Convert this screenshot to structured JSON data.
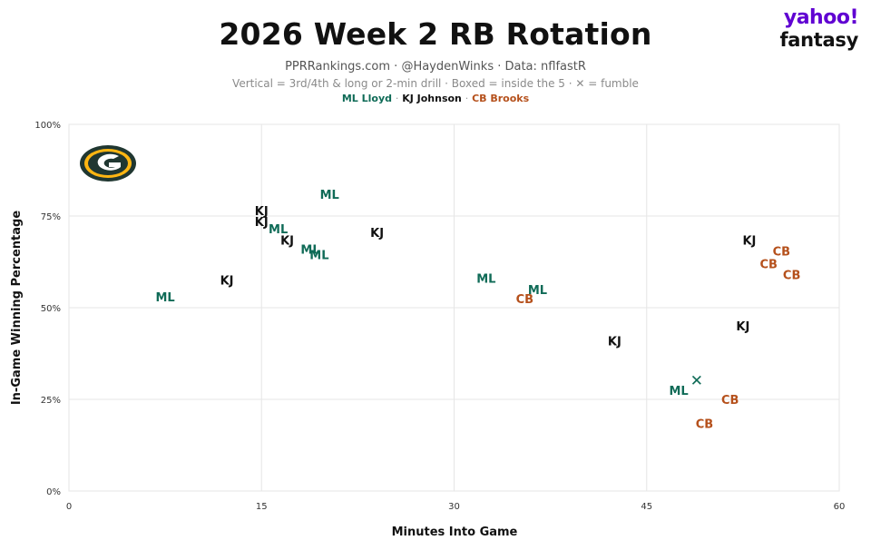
{
  "header": {
    "title": "2026 Week 2 RB Rotation",
    "subtitle": "PPRRankings.com · @HaydenWinks · Data: nflfastR",
    "note": "Vertical = 3rd/4th & long or 2-min drill · Boxed = inside the 5 · ✕ = fumble"
  },
  "brand": {
    "line1": "yahoo!",
    "line2": "fantasy"
  },
  "legend": {
    "items": [
      {
        "label": "ML Lloyd",
        "color": "#0f6b57"
      },
      {
        "label": "KJ Johnson",
        "color": "#111111"
      },
      {
        "label": "CB Brooks",
        "color": "#b5501b"
      }
    ],
    "separator": "·"
  },
  "logo": {
    "icon": "packers-g-logo-icon",
    "colors": {
      "outer": "#203731",
      "ring": "#ffb612",
      "inner": "#203731"
    }
  },
  "chart_data": {
    "type": "scatter",
    "title": "2026 Week 2 RB Rotation",
    "xlabel": "Minutes Into Game",
    "ylabel": "In-Game Winning Percentage",
    "xlim": [
      0,
      60
    ],
    "ylim": [
      0,
      100
    ],
    "xticks": [
      0,
      15,
      30,
      45,
      60
    ],
    "yticks": [
      0,
      25,
      50,
      75,
      100
    ],
    "ytick_labels": [
      "0%",
      "25%",
      "50%",
      "75%",
      "100%"
    ],
    "grid": true,
    "markers": {
      "fumble_symbol": "✕"
    },
    "series": [
      {
        "name": "ML Lloyd",
        "label": "ML",
        "color": "#0f6b57",
        "points": [
          {
            "x": 7.5,
            "y": 53
          },
          {
            "x": 16.3,
            "y": 71.5
          },
          {
            "x": 18.8,
            "y": 66
          },
          {
            "x": 19.5,
            "y": 64.5
          },
          {
            "x": 20.3,
            "y": 81
          },
          {
            "x": 32.5,
            "y": 58
          },
          {
            "x": 36.5,
            "y": 55
          },
          {
            "x": 47.5,
            "y": 27.5
          }
        ]
      },
      {
        "name": "KJ Johnson",
        "label": "KJ",
        "color": "#111111",
        "points": [
          {
            "x": 12.3,
            "y": 57.5
          },
          {
            "x": 15,
            "y": 76.5
          },
          {
            "x": 15,
            "y": 73.5
          },
          {
            "x": 17,
            "y": 68.5
          },
          {
            "x": 24,
            "y": 70.5
          },
          {
            "x": 42.5,
            "y": 41
          },
          {
            "x": 52.5,
            "y": 45
          },
          {
            "x": 53,
            "y": 68.5
          }
        ]
      },
      {
        "name": "CB Brooks",
        "label": "CB",
        "color": "#b5501b",
        "points": [
          {
            "x": 35.5,
            "y": 52.5
          },
          {
            "x": 49.5,
            "y": 18.5
          },
          {
            "x": 51.5,
            "y": 25
          },
          {
            "x": 54.5,
            "y": 62
          },
          {
            "x": 55.5,
            "y": 65.5
          },
          {
            "x": 56.3,
            "y": 59
          }
        ]
      },
      {
        "name": "Fumble",
        "label": "✕",
        "color": "#0f6b57",
        "points": [
          {
            "x": 48.9,
            "y": 30
          }
        ]
      }
    ]
  }
}
